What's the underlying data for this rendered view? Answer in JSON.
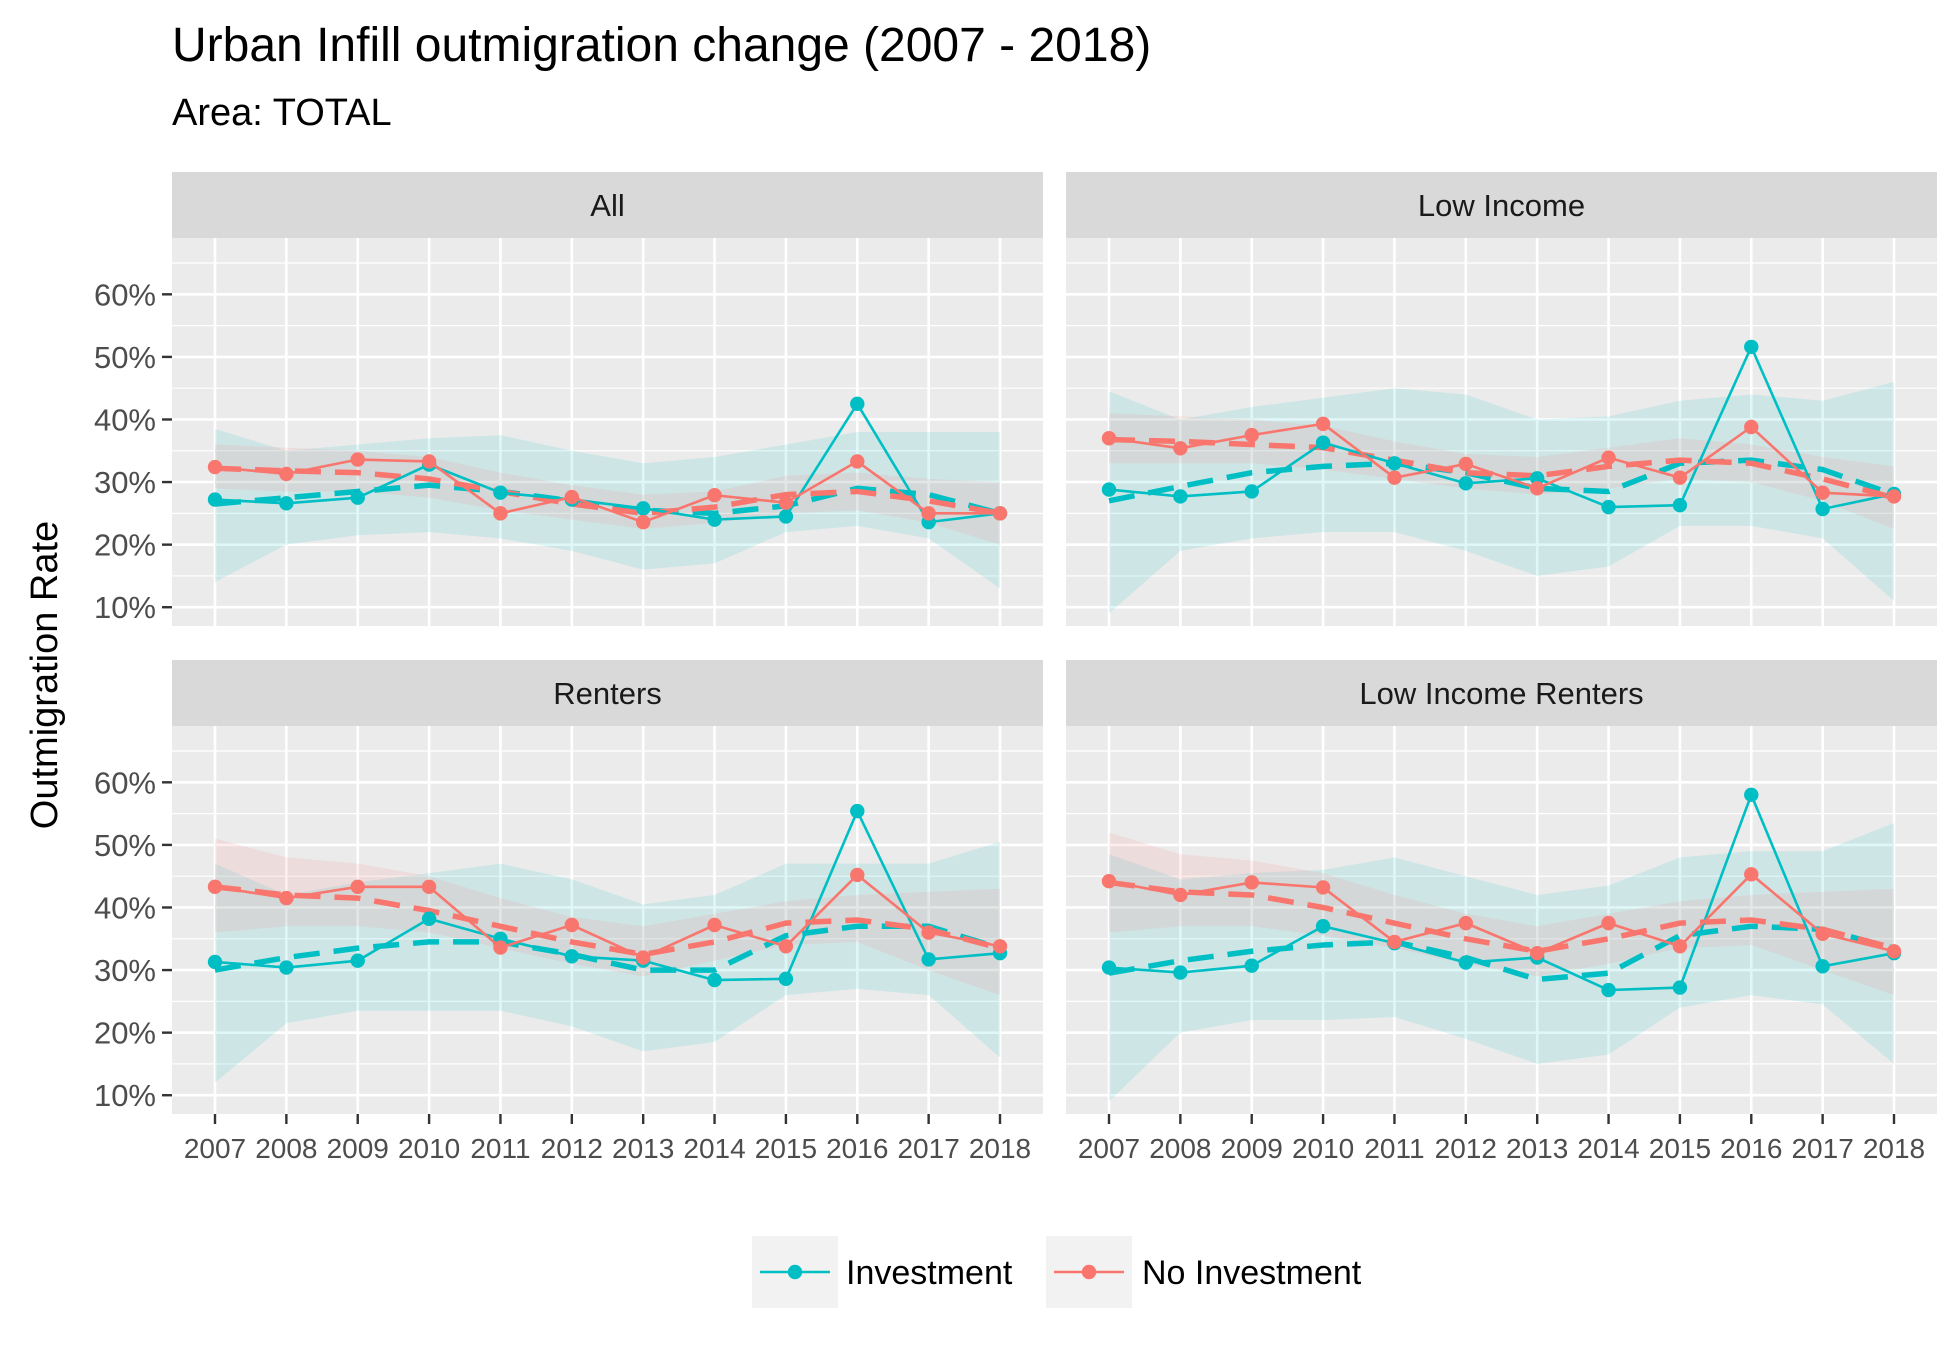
{
  "title": "Urban Infill outmigration change (2007 - 2018)",
  "subtitle": "Area: TOTAL",
  "colors": {
    "investment": "#00BFC4",
    "no_investment": "#F8766D"
  },
  "chart_data": {
    "type": "line",
    "x": [
      "2007",
      "2008",
      "2009",
      "2010",
      "2011",
      "2012",
      "2013",
      "2014",
      "2015",
      "2016",
      "2017",
      "2018"
    ],
    "ylabel": "Outmigration Rate",
    "ylim": [
      0.07,
      0.69
    ],
    "yticks": [
      0.1,
      0.2,
      0.3,
      0.4,
      0.5,
      0.6
    ],
    "ytick_labels": [
      "10%",
      "20%",
      "30%",
      "40%",
      "50%",
      "60%"
    ],
    "legend": [
      "Investment",
      "No Investment"
    ],
    "legend_position": "bottom",
    "facet_layout": "2x2",
    "panels": [
      {
        "title": "All",
        "series": [
          {
            "name": "Investment",
            "values": [
              0.272,
              0.266,
              0.275,
              0.328,
              0.283,
              0.272,
              0.258,
              0.24,
              0.245,
              0.425,
              0.236,
              0.25
            ],
            "trend": [
              0.265,
              0.275,
              0.285,
              0.295,
              0.285,
              0.27,
              0.255,
              0.25,
              0.262,
              0.29,
              0.28,
              0.25
            ],
            "ci_low": [
              0.14,
              0.2,
              0.215,
              0.22,
              0.21,
              0.19,
              0.16,
              0.17,
              0.22,
              0.23,
              0.21,
              0.13
            ],
            "ci_high": [
              0.385,
              0.35,
              0.36,
              0.37,
              0.375,
              0.35,
              0.33,
              0.34,
              0.36,
              0.38,
              0.38,
              0.38
            ]
          },
          {
            "name": "No Investment",
            "values": [
              0.324,
              0.313,
              0.336,
              0.333,
              0.25,
              0.276,
              0.236,
              0.279,
              0.267,
              0.333,
              0.25,
              0.25
            ],
            "trend": [
              0.322,
              0.318,
              0.315,
              0.305,
              0.285,
              0.265,
              0.25,
              0.26,
              0.28,
              0.285,
              0.27,
              0.25
            ],
            "ci_low": [
              0.29,
              0.285,
              0.285,
              0.275,
              0.255,
              0.24,
              0.225,
              0.235,
              0.25,
              0.255,
              0.235,
              0.2
            ],
            "ci_high": [
              0.36,
              0.355,
              0.35,
              0.34,
              0.315,
              0.295,
              0.28,
              0.285,
              0.31,
              0.315,
              0.305,
              0.3
            ]
          }
        ]
      },
      {
        "title": "Low Income",
        "series": [
          {
            "name": "Investment",
            "values": [
              0.288,
              0.277,
              0.285,
              0.363,
              0.33,
              0.298,
              0.306,
              0.26,
              0.263,
              0.516,
              0.257,
              0.281
            ],
            "trend": [
              0.27,
              0.293,
              0.315,
              0.325,
              0.33,
              0.315,
              0.29,
              0.285,
              0.33,
              0.335,
              0.32,
              0.28
            ],
            "ci_low": [
              0.09,
              0.19,
              0.21,
              0.22,
              0.22,
              0.19,
              0.15,
              0.165,
              0.23,
              0.23,
              0.21,
              0.11
            ],
            "ci_high": [
              0.445,
              0.4,
              0.42,
              0.435,
              0.45,
              0.44,
              0.4,
              0.405,
              0.43,
              0.44,
              0.43,
              0.46
            ]
          },
          {
            "name": "No Investment",
            "values": [
              0.37,
              0.354,
              0.375,
              0.393,
              0.307,
              0.329,
              0.29,
              0.339,
              0.307,
              0.388,
              0.283,
              0.277
            ],
            "trend": [
              0.368,
              0.365,
              0.36,
              0.355,
              0.335,
              0.315,
              0.31,
              0.325,
              0.335,
              0.33,
              0.305,
              0.275
            ],
            "ci_low": [
              0.33,
              0.33,
              0.33,
              0.32,
              0.305,
              0.29,
              0.28,
              0.29,
              0.305,
              0.3,
              0.27,
              0.225
            ],
            "ci_high": [
              0.41,
              0.405,
              0.4,
              0.39,
              0.365,
              0.345,
              0.34,
              0.355,
              0.37,
              0.36,
              0.34,
              0.325
            ]
          }
        ]
      },
      {
        "title": "Renters",
        "series": [
          {
            "name": "Investment",
            "values": [
              0.313,
              0.304,
              0.315,
              0.382,
              0.35,
              0.322,
              0.315,
              0.284,
              0.286,
              0.554,
              0.317,
              0.327
            ],
            "trend": [
              0.3,
              0.32,
              0.335,
              0.345,
              0.345,
              0.325,
              0.3,
              0.3,
              0.355,
              0.37,
              0.37,
              0.335
            ],
            "ci_low": [
              0.12,
              0.215,
              0.235,
              0.235,
              0.235,
              0.21,
              0.17,
              0.185,
              0.26,
              0.27,
              0.26,
              0.16
            ],
            "ci_high": [
              0.47,
              0.42,
              0.44,
              0.455,
              0.47,
              0.445,
              0.405,
              0.42,
              0.47,
              0.47,
              0.47,
              0.505
            ]
          },
          {
            "name": "No Investment",
            "values": [
              0.433,
              0.415,
              0.433,
              0.433,
              0.336,
              0.372,
              0.32,
              0.372,
              0.338,
              0.452,
              0.36,
              0.338
            ],
            "trend": [
              0.433,
              0.42,
              0.415,
              0.395,
              0.37,
              0.345,
              0.325,
              0.345,
              0.375,
              0.38,
              0.365,
              0.335
            ],
            "ci_low": [
              0.36,
              0.37,
              0.37,
              0.36,
              0.335,
              0.31,
              0.29,
              0.315,
              0.34,
              0.345,
              0.3,
              0.26
            ],
            "ci_high": [
              0.51,
              0.48,
              0.47,
              0.45,
              0.415,
              0.385,
              0.37,
              0.39,
              0.41,
              0.42,
              0.425,
              0.43
            ]
          }
        ]
      },
      {
        "title": "Low Income Renters",
        "series": [
          {
            "name": "Investment",
            "values": [
              0.304,
              0.296,
              0.307,
              0.37,
              0.343,
              0.312,
              0.32,
              0.268,
              0.272,
              0.58,
              0.306,
              0.327
            ],
            "trend": [
              0.295,
              0.315,
              0.33,
              0.34,
              0.345,
              0.32,
              0.285,
              0.295,
              0.355,
              0.37,
              0.365,
              0.335
            ],
            "ci_low": [
              0.09,
              0.2,
              0.22,
              0.22,
              0.225,
              0.19,
              0.15,
              0.165,
              0.24,
              0.26,
              0.245,
              0.15
            ],
            "ci_high": [
              0.485,
              0.445,
              0.455,
              0.46,
              0.48,
              0.45,
              0.42,
              0.435,
              0.48,
              0.49,
              0.49,
              0.535
            ]
          },
          {
            "name": "No Investment",
            "values": [
              0.442,
              0.42,
              0.44,
              0.432,
              0.345,
              0.375,
              0.327,
              0.375,
              0.338,
              0.453,
              0.358,
              0.33
            ],
            "trend": [
              0.44,
              0.425,
              0.42,
              0.4,
              0.375,
              0.35,
              0.33,
              0.35,
              0.375,
              0.38,
              0.365,
              0.335
            ],
            "ci_low": [
              0.36,
              0.37,
              0.37,
              0.355,
              0.335,
              0.31,
              0.29,
              0.31,
              0.335,
              0.34,
              0.3,
              0.26
            ],
            "ci_high": [
              0.52,
              0.485,
              0.475,
              0.455,
              0.42,
              0.39,
              0.37,
              0.39,
              0.41,
              0.42,
              0.425,
              0.43
            ]
          }
        ]
      }
    ]
  }
}
